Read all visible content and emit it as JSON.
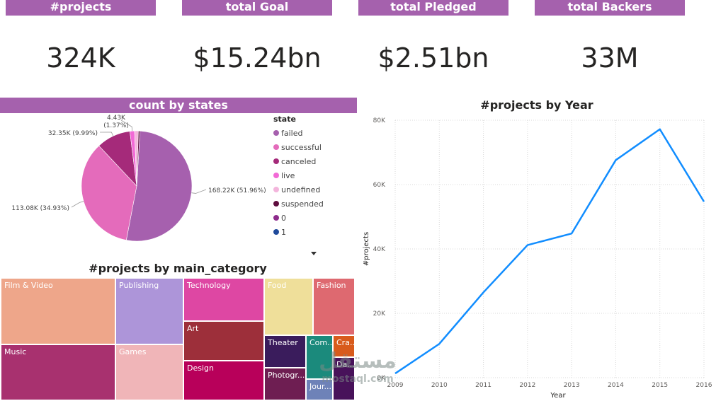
{
  "kpis": [
    {
      "label": "#projects",
      "value": "324K"
    },
    {
      "label": "total Goal",
      "value": "$15.24bn"
    },
    {
      "label": "total Pledged",
      "value": "$2.51bn"
    },
    {
      "label": "total Backers",
      "value": "33M"
    }
  ],
  "pie_header": "count by states",
  "treemap_title": "#projects by main_category",
  "line_title": "#projects by Year",
  "watermark": {
    "arabic": "مستقل",
    "latin": "mostaql.com"
  },
  "legend": {
    "title": "state"
  },
  "chart_data": [
    {
      "type": "pie",
      "title": "count by states",
      "legend_title": "state",
      "legend_placement": "right",
      "slices": [
        {
          "name": "failed",
          "value": 168.22,
          "label": "168.22K (51.96%)",
          "color": "#a660ae"
        },
        {
          "name": "successful",
          "value": 113.08,
          "label": "113.08K (34.93%)",
          "color": "#e46bbb"
        },
        {
          "name": "canceled",
          "value": 32.35,
          "label": "32.35K (9.99%)",
          "color": "#a52a7a"
        },
        {
          "name": "live",
          "value": 4.43,
          "label": "4.43K (1.37%)",
          "color": "#f26ad6"
        },
        {
          "name": "undefined",
          "value": 3.56,
          "label": "",
          "color": "#f3b5dc"
        },
        {
          "name": "suspended",
          "value": 1.48,
          "label": "",
          "color": "#5e0d3e"
        },
        {
          "name": "0",
          "value": 0,
          "label": "",
          "color": "#8e2c8c"
        },
        {
          "name": "1",
          "value": 0,
          "label": "",
          "color": "#1f4a9b"
        }
      ]
    },
    {
      "type": "treemap",
      "title": "#projects by main_category",
      "cells": [
        {
          "name": "Film & Video",
          "color": "#eea68a"
        },
        {
          "name": "Music",
          "color": "#a8316f"
        },
        {
          "name": "Publishing",
          "color": "#ad95d9"
        },
        {
          "name": "Games",
          "color": "#f0b5b8"
        },
        {
          "name": "Technology",
          "color": "#de47a3"
        },
        {
          "name": "Art",
          "color": "#9d2f3a"
        },
        {
          "name": "Design",
          "color": "#b8005a"
        },
        {
          "name": "Food",
          "color": "#efdf9a"
        },
        {
          "name": "Fashion",
          "color": "#de6970"
        },
        {
          "name": "Theater",
          "color": "#3a1c5c"
        },
        {
          "name": "Photogr...",
          "color": "#6e1e52"
        },
        {
          "name": "Com...",
          "color": "#1b8a7c"
        },
        {
          "name": "Cra...",
          "color": "#d85b1c"
        },
        {
          "name": "Jour...",
          "color": "#6e82b8"
        },
        {
          "name": "Da...",
          "color": "#48125a"
        }
      ]
    },
    {
      "type": "line",
      "title": "#projects by Year",
      "xlabel": "Year",
      "ylabel": "#projects",
      "x": [
        "2009",
        "2010",
        "2011",
        "2012",
        "2013",
        "2014",
        "2015",
        "2016"
      ],
      "series": [
        {
          "values": [
            1300,
            10500,
            26500,
            41200,
            44800,
            67600,
            77200,
            54700
          ],
          "color": "#118dff"
        }
      ],
      "ylim": [
        0,
        80000
      ],
      "yticks": [
        "0K",
        "20K",
        "40K",
        "60K",
        "80K"
      ],
      "grid": true
    }
  ]
}
